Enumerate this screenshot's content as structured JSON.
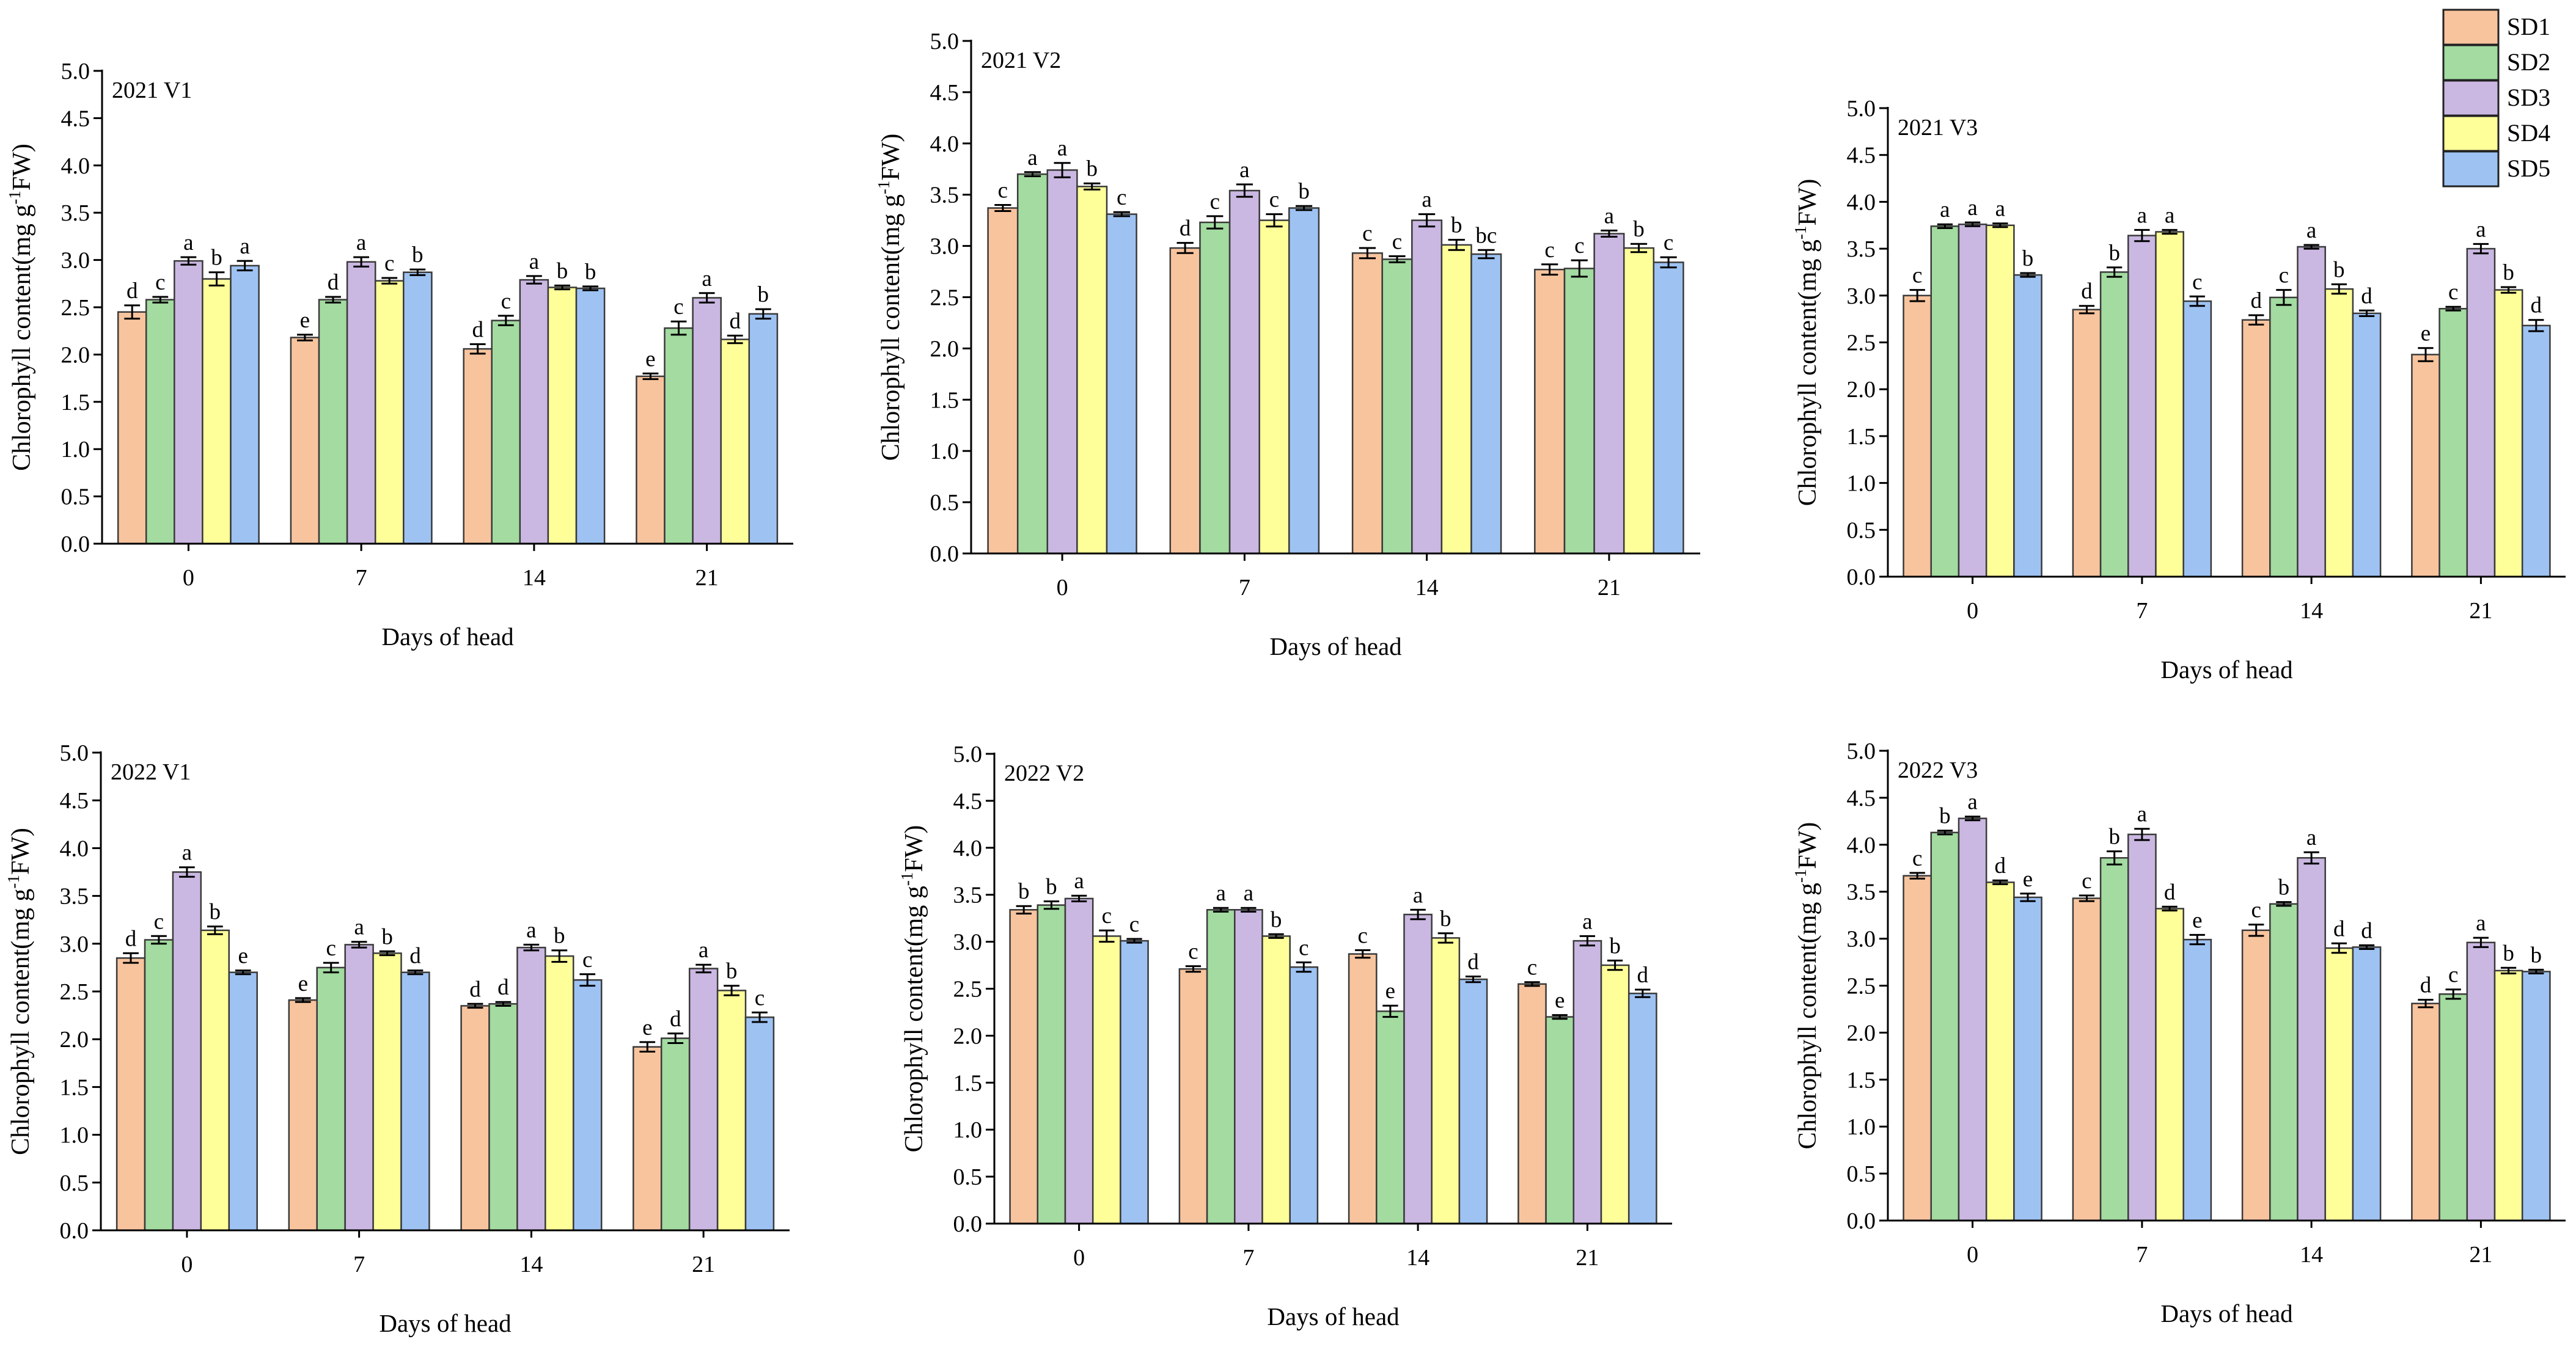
{
  "legend": {
    "items": [
      {
        "label": "SD1",
        "color": "#F8C49E"
      },
      {
        "label": "SD2",
        "color": "#A3DBA1"
      },
      {
        "label": "SD3",
        "color": "#CAB8E2"
      },
      {
        "label": "SD4",
        "color": "#FFFF9A"
      },
      {
        "label": "SD5",
        "color": "#9EC3F3"
      }
    ]
  },
  "chart_data": [
    {
      "type": "bar",
      "title": "2021 V1",
      "xlabel": "Days of head",
      "ylabel": {
        "prefix": "Chlorophyll content(mg g",
        "sup": "-1",
        "suffix": "FW)"
      },
      "categories": [
        "0",
        "7",
        "14",
        "21"
      ],
      "ylim": [
        0,
        5
      ],
      "yticks": [
        "0.0",
        "0.5",
        "1.0",
        "1.5",
        "2.0",
        "2.5",
        "3.0",
        "3.5",
        "4.0",
        "4.5",
        "5.0"
      ],
      "series": [
        {
          "name": "SD1",
          "values": [
            2.45,
            2.18,
            2.06,
            1.77
          ],
          "errors": [
            0.07,
            0.03,
            0.05,
            0.03
          ],
          "letters": [
            "d",
            "e",
            "d",
            "e"
          ]
        },
        {
          "name": "SD2",
          "values": [
            2.58,
            2.58,
            2.36,
            2.28
          ],
          "errors": [
            0.03,
            0.03,
            0.05,
            0.07
          ],
          "letters": [
            "c",
            "d",
            "c",
            "c"
          ]
        },
        {
          "name": "SD3",
          "values": [
            2.99,
            2.98,
            2.79,
            2.6
          ],
          "errors": [
            0.04,
            0.05,
            0.04,
            0.05
          ],
          "letters": [
            "a",
            "a",
            "a",
            "a"
          ]
        },
        {
          "name": "SD4",
          "values": [
            2.8,
            2.78,
            2.71,
            2.16
          ],
          "errors": [
            0.07,
            0.03,
            0.02,
            0.04
          ],
          "letters": [
            "b",
            "c",
            "b",
            "d"
          ]
        },
        {
          "name": "SD5",
          "values": [
            2.94,
            2.87,
            2.7,
            2.43
          ],
          "errors": [
            0.05,
            0.03,
            0.02,
            0.05
          ],
          "letters": [
            "a",
            "b",
            "b",
            "b"
          ]
        }
      ]
    },
    {
      "type": "bar",
      "title": "2021 V2",
      "xlabel": "Days of head",
      "ylabel": {
        "prefix": "Chlorophyll content(mg g",
        "sup": "-1",
        "suffix": "FW)"
      },
      "categories": [
        "0",
        "7",
        "14",
        "21"
      ],
      "ylim": [
        0,
        5
      ],
      "yticks": [
        "0.0",
        "0.5",
        "1.0",
        "1.5",
        "2.0",
        "2.5",
        "3.0",
        "3.5",
        "4.0",
        "4.5",
        "5.0"
      ],
      "series": [
        {
          "name": "SD1",
          "values": [
            3.37,
            2.98,
            2.93,
            2.77
          ],
          "errors": [
            0.03,
            0.05,
            0.05,
            0.05
          ],
          "letters": [
            "c",
            "d",
            "c",
            "c"
          ]
        },
        {
          "name": "SD2",
          "values": [
            3.7,
            3.23,
            2.87,
            2.78
          ],
          "errors": [
            0.02,
            0.06,
            0.03,
            0.08
          ],
          "letters": [
            "a",
            "c",
            "c",
            "c"
          ]
        },
        {
          "name": "SD3",
          "values": [
            3.74,
            3.54,
            3.25,
            3.12
          ],
          "errors": [
            0.07,
            0.06,
            0.06,
            0.03
          ],
          "letters": [
            "a",
            "a",
            "a",
            "a"
          ]
        },
        {
          "name": "SD4",
          "values": [
            3.58,
            3.25,
            3.01,
            2.98
          ],
          "errors": [
            0.03,
            0.06,
            0.05,
            0.04
          ],
          "letters": [
            "b",
            "c",
            "b",
            "b"
          ]
        },
        {
          "name": "SD5",
          "values": [
            3.31,
            3.37,
            2.92,
            2.84
          ],
          "errors": [
            0.02,
            0.02,
            0.04,
            0.05
          ],
          "letters": [
            "c",
            "b",
            "bc",
            "c"
          ]
        }
      ]
    },
    {
      "type": "bar",
      "title": "2021 V3",
      "xlabel": "Days of head",
      "ylabel": {
        "prefix": "Chlorophyll content(mg g",
        "sup": "-1",
        "suffix": "FW)"
      },
      "categories": [
        "0",
        "7",
        "14",
        "21"
      ],
      "ylim": [
        0,
        5
      ],
      "yticks": [
        "0.0",
        "0.5",
        "1.0",
        "1.5",
        "2.0",
        "2.5",
        "3.0",
        "3.5",
        "4.0",
        "4.5",
        "5.0"
      ],
      "series": [
        {
          "name": "SD1",
          "values": [
            3.0,
            2.85,
            2.74,
            2.37
          ],
          "errors": [
            0.06,
            0.04,
            0.05,
            0.07
          ],
          "letters": [
            "c",
            "d",
            "d",
            "e"
          ]
        },
        {
          "name": "SD2",
          "values": [
            3.74,
            3.25,
            2.98,
            2.86
          ],
          "errors": [
            0.02,
            0.05,
            0.08,
            0.02
          ],
          "letters": [
            "a",
            "b",
            "c",
            "c"
          ]
        },
        {
          "name": "SD3",
          "values": [
            3.76,
            3.64,
            3.52,
            3.5
          ],
          "errors": [
            0.02,
            0.06,
            0.02,
            0.05
          ],
          "letters": [
            "a",
            "a",
            "a",
            "a"
          ]
        },
        {
          "name": "SD4",
          "values": [
            3.75,
            3.68,
            3.07,
            3.06
          ],
          "errors": [
            0.02,
            0.02,
            0.05,
            0.03
          ],
          "letters": [
            "a",
            "a",
            "b",
            "b"
          ]
        },
        {
          "name": "SD5",
          "values": [
            3.22,
            2.94,
            2.81,
            2.68
          ],
          "errors": [
            0.02,
            0.05,
            0.03,
            0.06
          ],
          "letters": [
            "b",
            "c",
            "d",
            "d"
          ]
        }
      ]
    },
    {
      "type": "bar",
      "title": "2022 V1",
      "xlabel": "Days of head",
      "ylabel": {
        "prefix": "Chlorophyll content(mg g",
        "sup": "-1",
        "suffix": "FW)"
      },
      "categories": [
        "0",
        "7",
        "14",
        "21"
      ],
      "ylim": [
        0,
        5
      ],
      "yticks": [
        "0.0",
        "0.5",
        "1.0",
        "1.5",
        "2.0",
        "2.5",
        "3.0",
        "3.5",
        "4.0",
        "4.5",
        "5.0"
      ],
      "series": [
        {
          "name": "SD1",
          "values": [
            2.85,
            2.41,
            2.35,
            1.92
          ],
          "errors": [
            0.05,
            0.02,
            0.02,
            0.05
          ],
          "letters": [
            "d",
            "e",
            "d",
            "e"
          ]
        },
        {
          "name": "SD2",
          "values": [
            3.04,
            2.75,
            2.37,
            2.01
          ],
          "errors": [
            0.04,
            0.05,
            0.02,
            0.05
          ],
          "letters": [
            "c",
            "c",
            "d",
            "d"
          ]
        },
        {
          "name": "SD3",
          "values": [
            3.75,
            2.99,
            2.96,
            2.74
          ],
          "errors": [
            0.05,
            0.03,
            0.03,
            0.04
          ],
          "letters": [
            "a",
            "a",
            "a",
            "a"
          ]
        },
        {
          "name": "SD4",
          "values": [
            3.14,
            2.9,
            2.87,
            2.51
          ],
          "errors": [
            0.04,
            0.02,
            0.06,
            0.05
          ],
          "letters": [
            "b",
            "b",
            "b",
            "b"
          ]
        },
        {
          "name": "SD5",
          "values": [
            2.7,
            2.7,
            2.62,
            2.23
          ],
          "errors": [
            0.02,
            0.02,
            0.06,
            0.05
          ],
          "letters": [
            "e",
            "d",
            "c",
            "c"
          ]
        }
      ]
    },
    {
      "type": "bar",
      "title": "2022 V2",
      "xlabel": "Days of head",
      "ylabel": {
        "prefix": "Chlorophyll content(mg g",
        "sup": "-1",
        "suffix": "FW)"
      },
      "categories": [
        "0",
        "7",
        "14",
        "21"
      ],
      "ylim": [
        0,
        5
      ],
      "yticks": [
        "0.0",
        "0.5",
        "1.0",
        "1.5",
        "2.0",
        "2.5",
        "3.0",
        "3.5",
        "4.0",
        "4.5",
        "5.0"
      ],
      "series": [
        {
          "name": "SD1",
          "values": [
            3.34,
            2.71,
            2.87,
            2.55
          ],
          "errors": [
            0.04,
            0.03,
            0.04,
            0.02
          ],
          "letters": [
            "b",
            "c",
            "c",
            "c"
          ]
        },
        {
          "name": "SD2",
          "values": [
            3.39,
            3.34,
            2.26,
            2.2
          ],
          "errors": [
            0.04,
            0.02,
            0.06,
            0.02
          ],
          "letters": [
            "b",
            "a",
            "e",
            "e"
          ]
        },
        {
          "name": "SD3",
          "values": [
            3.46,
            3.34,
            3.29,
            3.01
          ],
          "errors": [
            0.03,
            0.02,
            0.05,
            0.05
          ],
          "letters": [
            "a",
            "a",
            "a",
            "a"
          ]
        },
        {
          "name": "SD4",
          "values": [
            3.06,
            3.06,
            3.04,
            2.75
          ],
          "errors": [
            0.06,
            0.02,
            0.05,
            0.05
          ],
          "letters": [
            "c",
            "b",
            "b",
            "b"
          ]
        },
        {
          "name": "SD5",
          "values": [
            3.01,
            2.73,
            2.6,
            2.45
          ],
          "errors": [
            0.02,
            0.05,
            0.03,
            0.04
          ],
          "letters": [
            "c",
            "c",
            "d",
            "d"
          ]
        }
      ]
    },
    {
      "type": "bar",
      "title": "2022 V3",
      "xlabel": "Days of head",
      "ylabel": {
        "prefix": "Chlorophyll content(mg g",
        "sup": "-1",
        "suffix": "FW)"
      },
      "categories": [
        "0",
        "7",
        "14",
        "21"
      ],
      "ylim": [
        0,
        5
      ],
      "yticks": [
        "0.0",
        "0.5",
        "1.0",
        "1.5",
        "2.0",
        "2.5",
        "3.0",
        "3.5",
        "4.0",
        "4.5",
        "5.0"
      ],
      "series": [
        {
          "name": "SD1",
          "values": [
            3.67,
            3.43,
            3.09,
            2.31
          ],
          "errors": [
            0.03,
            0.03,
            0.06,
            0.04
          ],
          "letters": [
            "c",
            "c",
            "c",
            "d"
          ]
        },
        {
          "name": "SD2",
          "values": [
            4.13,
            3.86,
            3.37,
            2.41
          ],
          "errors": [
            0.02,
            0.07,
            0.02,
            0.05
          ],
          "letters": [
            "b",
            "b",
            "b",
            "c"
          ]
        },
        {
          "name": "SD3",
          "values": [
            4.28,
            4.11,
            3.86,
            2.96
          ],
          "errors": [
            0.02,
            0.06,
            0.06,
            0.05
          ],
          "letters": [
            "a",
            "a",
            "a",
            "a"
          ]
        },
        {
          "name": "SD4",
          "values": [
            3.6,
            3.32,
            2.9,
            2.66
          ],
          "errors": [
            0.02,
            0.02,
            0.05,
            0.03
          ],
          "letters": [
            "d",
            "d",
            "d",
            "b"
          ]
        },
        {
          "name": "SD5",
          "values": [
            3.44,
            2.99,
            2.91,
            2.65
          ],
          "errors": [
            0.04,
            0.05,
            0.02,
            0.02
          ],
          "letters": [
            "e",
            "e",
            "d",
            "b"
          ]
        }
      ]
    }
  ]
}
